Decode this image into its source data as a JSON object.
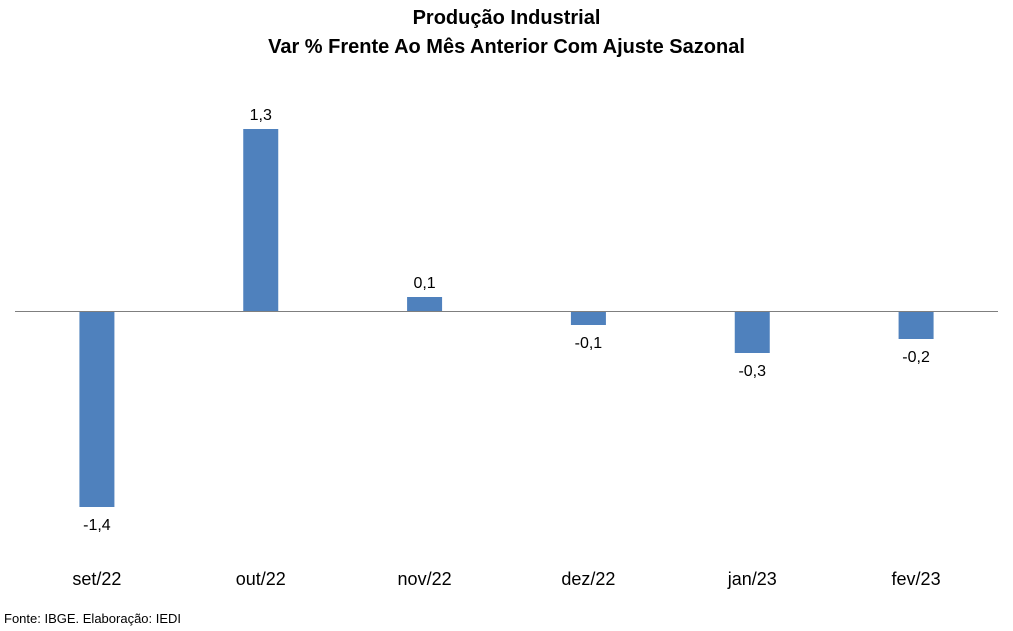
{
  "chart_data": {
    "type": "bar",
    "title": "Produção Industrial",
    "subtitle": "Var % Frente Ao Mês Anterior Com Ajuste Sazonal",
    "categories": [
      "set/22",
      "out/22",
      "nov/22",
      "dez/22",
      "jan/23",
      "fev/23"
    ],
    "values": [
      -1.4,
      1.3,
      0.1,
      -0.1,
      -0.3,
      -0.2
    ],
    "data_labels": [
      "-1,4",
      "1,3",
      "0,1",
      "-0,1",
      "-0,3",
      "-0,2"
    ],
    "xlabel": "",
    "ylabel": "",
    "grid": false,
    "legend": "none",
    "colors": {
      "bar": "#4F81BD",
      "axis": "#7f7f7f"
    }
  },
  "source_note": "Fonte: IBGE. Elaboração: IEDI"
}
